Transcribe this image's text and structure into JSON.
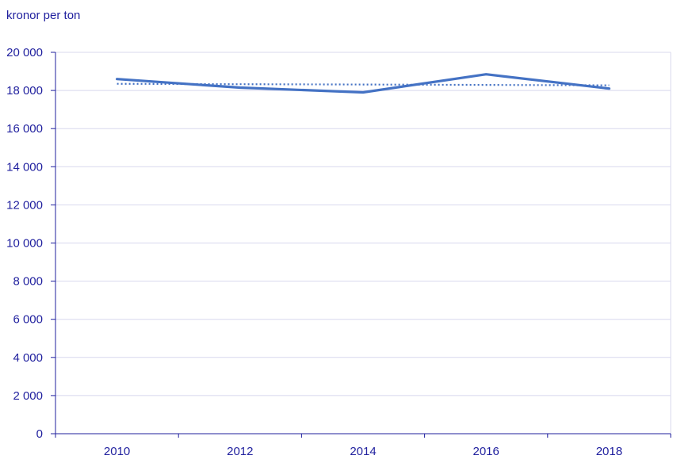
{
  "chart_data": {
    "type": "line",
    "unit_label": "kronor per ton",
    "x": [
      2010,
      2012,
      2014,
      2016,
      2018
    ],
    "x_tick_labels": [
      "2010",
      "2012",
      "2014",
      "2016",
      "2018"
    ],
    "series": [
      {
        "style": "solid",
        "color": "#4472c4",
        "values": [
          18600,
          18150,
          17900,
          18850,
          18100
        ]
      },
      {
        "style": "dotted",
        "color": "#4472c4",
        "values": [
          18350,
          18330,
          18310,
          18290,
          18270
        ]
      }
    ],
    "y_ticks": [
      0,
      2000,
      4000,
      6000,
      8000,
      10000,
      12000,
      14000,
      16000,
      18000,
      20000
    ],
    "y_tick_labels": [
      "0",
      "2 000",
      "4 000",
      "6 000",
      "8 000",
      "10 000",
      "12 000",
      "14 000",
      "16 000",
      "18 000",
      "20 000"
    ],
    "ylim": [
      0,
      20000
    ],
    "grid": true,
    "axis_color": "#1f1f9e",
    "grid_color": "#d8d8ee"
  }
}
